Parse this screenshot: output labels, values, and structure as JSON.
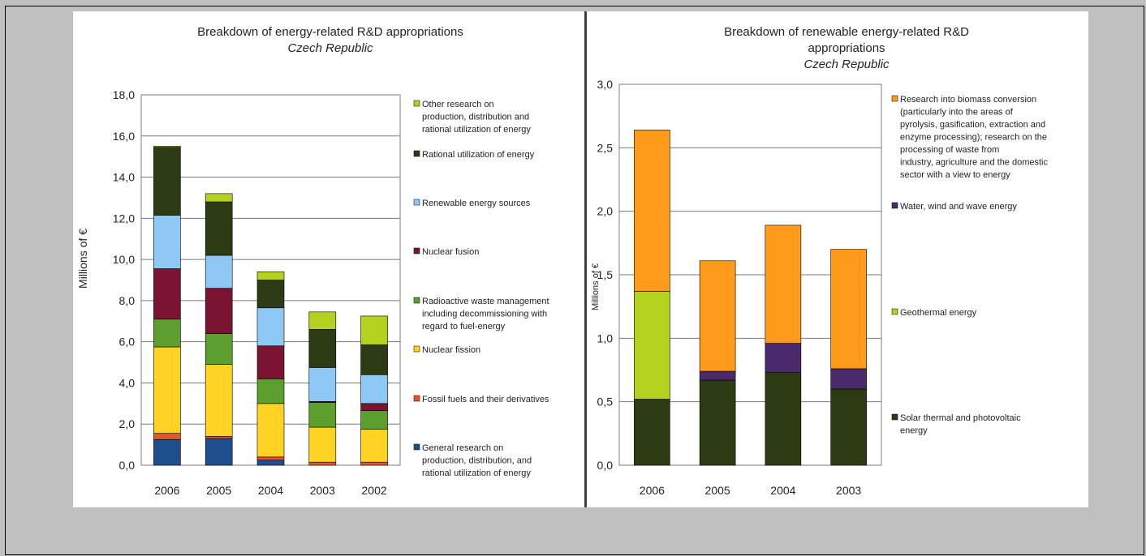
{
  "chart_data": [
    {
      "type": "bar",
      "stacked": true,
      "title": "Breakdown of energy-related R&D appropriations",
      "subtitle": "Czech Republic",
      "ylabel": "Millions of €",
      "ylim": [
        0,
        18
      ],
      "yticks": [
        "0,0",
        "2,0",
        "4,0",
        "6,0",
        "8,0",
        "10,0",
        "12,0",
        "14,0",
        "16,0",
        "18,0"
      ],
      "grid": true,
      "legend": "right",
      "categories": [
        "2006",
        "2005",
        "2004",
        "2003",
        "2002"
      ],
      "series": [
        {
          "name": "General research on production, distribution, and rational utilization of energy",
          "color": "#1f4e8c",
          "values": [
            1.25,
            1.3,
            0.25,
            0.0,
            0.0
          ]
        },
        {
          "name": "Fossil fuels and their derivatives",
          "color": "#e8552b",
          "values": [
            0.3,
            0.1,
            0.15,
            0.15,
            0.15
          ]
        },
        {
          "name": "Nuclear fission",
          "color": "#ffd324",
          "values": [
            4.2,
            3.5,
            2.6,
            1.7,
            1.6
          ]
        },
        {
          "name": "Radioactive waste management including decommissioning with regard to fuel-energy",
          "color": "#5c9f2e",
          "values": [
            1.35,
            1.5,
            1.2,
            1.2,
            0.9
          ]
        },
        {
          "name": "Nuclear fusion",
          "color": "#7b1430",
          "values": [
            2.45,
            2.2,
            1.6,
            0.05,
            0.35
          ]
        },
        {
          "name": "Renewable energy sources",
          "color": "#8ec9f5",
          "values": [
            2.6,
            1.6,
            1.85,
            1.65,
            1.4
          ]
        },
        {
          "name": "Rational utilization of energy",
          "color": "#2d3b12",
          "values": [
            3.3,
            2.6,
            1.35,
            1.85,
            1.45
          ]
        },
        {
          "name": "Other research on production, distribution and rational utilization of energy",
          "color": "#b5d11f",
          "values": [
            0.05,
            0.4,
            0.4,
            0.85,
            1.4
          ]
        }
      ],
      "legend_lines": [
        [
          "Other research on",
          "production, distribution and",
          "rational utilization of energy"
        ],
        [
          "Rational utilization of energy"
        ],
        [
          "Renewable energy sources"
        ],
        [
          "Nuclear fusion"
        ],
        [
          "Radioactive waste management",
          "including decommissioning with",
          "regard to fuel-energy"
        ],
        [
          "Nuclear fission"
        ],
        [
          "Fossil fuels and their derivatives"
        ],
        [
          "General research on",
          "production, distribution, and",
          "rational utilization of energy"
        ]
      ]
    },
    {
      "type": "bar",
      "stacked": true,
      "title": "Breakdown of renewable energy-related R&D",
      "title_line2": "appropriations",
      "subtitle": "Czech Republic",
      "ylabel": "Millions of €",
      "ylim": [
        0,
        3
      ],
      "yticks": [
        "0,0",
        "0,5",
        "1,0",
        "1,5",
        "2,0",
        "2,5",
        "3,0"
      ],
      "grid": true,
      "legend": "right",
      "categories": [
        "2006",
        "2005",
        "2004",
        "2003"
      ],
      "series": [
        {
          "name": "Solar thermal and photovoltaic energy",
          "color": "#2d3b12",
          "values": [
            0.52,
            0.67,
            0.73,
            0.6
          ]
        },
        {
          "name": "Geothermal energy",
          "color": "#b5d11f",
          "values": [
            0.85,
            0.0,
            0.0,
            0.0
          ]
        },
        {
          "name": "Water, wind and wave energy",
          "color": "#4a2a6b",
          "values": [
            0.0,
            0.07,
            0.23,
            0.16
          ]
        },
        {
          "name": "Research into biomass conversion (particularly into the areas of pyrolysis, gasification, extraction and enzyme processing); research on the processing of waste from industry, agriculture and the domestic sector with a view to energy",
          "color": "#ff9a1a",
          "values": [
            1.27,
            0.87,
            0.93,
            0.94
          ]
        }
      ],
      "legend_lines": [
        [
          "Research into biomass conversion",
          "(particularly into the areas of",
          "pyrolysis, gasification, extraction and",
          "enzyme processing); research on the",
          "processing of waste from",
          "industry, agriculture and the domestic",
          "sector with a view to energy"
        ],
        [
          "Water, wind and wave energy"
        ],
        [
          "Geothermal energy"
        ],
        [
          "Solar thermal and photovoltaic",
          "energy"
        ]
      ]
    }
  ]
}
